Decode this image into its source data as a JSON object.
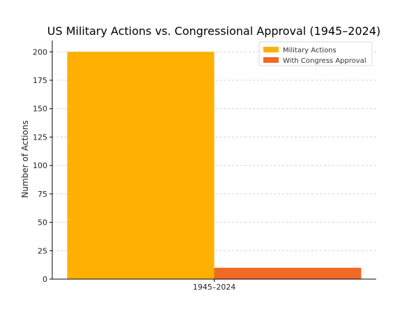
{
  "chart_data": {
    "type": "bar",
    "title": "US Military Actions vs. Congressional Approval (1945–2024)",
    "xlabel": "",
    "ylabel": "Number of Actions",
    "categories": [
      "1945–2024"
    ],
    "series": [
      {
        "name": "Military Actions",
        "values": [
          200
        ],
        "color": "#ffb000"
      },
      {
        "name": "With Congress Approval",
        "values": [
          10
        ],
        "color": "#f06a24"
      }
    ],
    "ylim": [
      0,
      210
    ],
    "yticks": [
      0,
      25,
      50,
      75,
      100,
      125,
      150,
      175,
      200
    ],
    "grid": "horizontal dashed",
    "legend_position": "top-right"
  }
}
